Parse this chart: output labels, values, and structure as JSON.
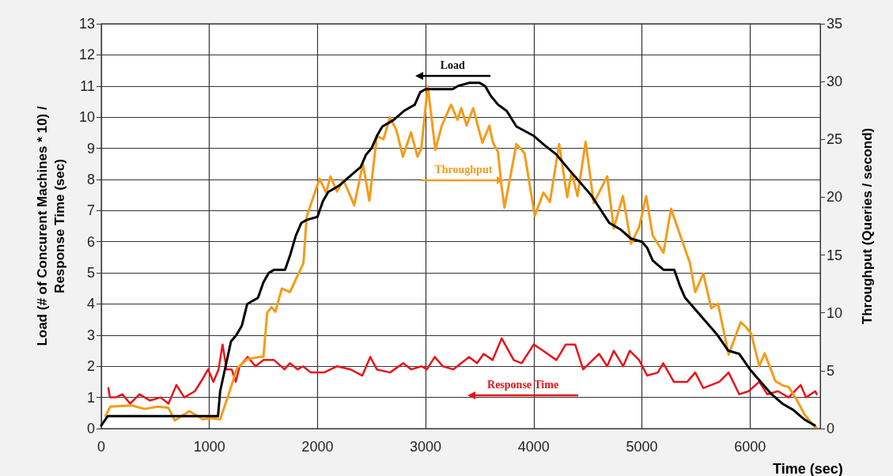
{
  "chart_data": {
    "type": "line",
    "xlabel": "Time (sec)",
    "ylabel": "Load (# of Concurent Machines * 10) /\nResponse Time (sec)",
    "y2label": "Throughput (Queries / second)",
    "xlim": [
      0,
      6650
    ],
    "xticks": [
      0,
      1000,
      2000,
      3000,
      4000,
      5000,
      6000
    ],
    "ylim": [
      0,
      13
    ],
    "yticks": [
      0,
      1,
      2,
      3,
      4,
      5,
      6,
      7,
      8,
      9,
      10,
      11,
      12,
      13
    ],
    "y2lim": [
      0,
      35
    ],
    "y2ticks": [
      0,
      5,
      10,
      15,
      20,
      25,
      30,
      35
    ],
    "grid": true,
    "marker": "none",
    "line_style": "solid",
    "series": [
      {
        "name": "Load",
        "color": "#000000",
        "axis": "y",
        "x": [
          0,
          60,
          1080,
          1100,
          1150,
          1200,
          1250,
          1300,
          1350,
          1400,
          1450,
          1500,
          1550,
          1600,
          1700,
          1750,
          1800,
          1850,
          1900,
          2000,
          2050,
          2100,
          2200,
          2300,
          2400,
          2450,
          2500,
          2550,
          2600,
          2700,
          2800,
          2900,
          2950,
          3000,
          3100,
          3250,
          3300,
          3400,
          3500,
          3550,
          3600,
          3670,
          3750,
          3840,
          4000,
          4100,
          4210,
          4330,
          4530,
          4700,
          4800,
          4900,
          5000,
          5050,
          5100,
          5200,
          5300,
          5350,
          5400,
          5500,
          5600,
          5700,
          5800,
          5900,
          6000,
          6100,
          6200,
          6300,
          6400,
          6500,
          6600
        ],
        "values": [
          0.1,
          0.4,
          0.4,
          1.2,
          2.0,
          2.8,
          3.0,
          3.3,
          4.0,
          4.1,
          4.2,
          4.7,
          5.0,
          5.1,
          5.1,
          5.6,
          6.2,
          6.6,
          6.7,
          6.8,
          7.3,
          7.6,
          7.8,
          8.1,
          8.4,
          8.8,
          9.0,
          9.4,
          9.7,
          9.9,
          10.2,
          10.4,
          10.8,
          10.9,
          10.9,
          10.9,
          11.0,
          11.1,
          11.1,
          11.0,
          10.7,
          10.4,
          10.2,
          9.7,
          9.4,
          9.1,
          8.8,
          8.3,
          7.5,
          6.6,
          6.4,
          6.1,
          6.0,
          5.8,
          5.4,
          5.1,
          5.1,
          4.6,
          4.2,
          3.8,
          3.4,
          3.0,
          2.5,
          2.4,
          1.9,
          1.5,
          1.1,
          0.8,
          0.6,
          0.3,
          0.1
        ]
      },
      {
        "name": "Throughput",
        "color": "#f39c1a",
        "axis": "y2",
        "x": [
          40,
          85,
          280,
          400,
          525,
          620,
          680,
          815,
          940,
          1010,
          1100,
          1180,
          1255,
          1350,
          1475,
          1500,
          1535,
          1575,
          1610,
          1670,
          1745,
          1795,
          1870,
          1900,
          1950,
          2020,
          2080,
          2120,
          2180,
          2240,
          2340,
          2420,
          2480,
          2550,
          2610,
          2670,
          2730,
          2790,
          2865,
          2925,
          2960,
          3020,
          3090,
          3150,
          3235,
          3295,
          3330,
          3380,
          3440,
          3525,
          3590,
          3620,
          3670,
          3700,
          3730,
          3840,
          3915,
          4010,
          4090,
          4150,
          4235,
          4310,
          4350,
          4405,
          4480,
          4555,
          4680,
          4740,
          4825,
          4900,
          4975,
          5040,
          5100,
          5200,
          5270,
          5370,
          5445,
          5494,
          5568,
          5642,
          5704,
          5803,
          5914,
          5960,
          6012,
          6086,
          6136,
          6235,
          6309,
          6358,
          6432,
          6506,
          6593,
          6617
        ],
        "values": [
          1.1,
          1.9,
          2.0,
          1.7,
          1.9,
          1.8,
          0.7,
          1.5,
          0.8,
          0.9,
          0.8,
          3.0,
          5.2,
          6.0,
          6.2,
          6.2,
          10.0,
          10.5,
          10.1,
          12.1,
          11.8,
          12.8,
          14.3,
          18.3,
          19.7,
          21.6,
          20.4,
          21.8,
          20.5,
          21.5,
          19.3,
          22.9,
          19.7,
          25.3,
          25.0,
          26.9,
          25.8,
          23.5,
          25.6,
          23.5,
          24.2,
          29.6,
          24.1,
          26.2,
          28.0,
          26.7,
          27.7,
          26.2,
          27.7,
          24.7,
          26.2,
          24.8,
          23.9,
          21.1,
          19.1,
          24.6,
          23.8,
          18.4,
          20.4,
          19.6,
          24.6,
          20.0,
          22.2,
          20.1,
          24.8,
          19.5,
          21.8,
          17.3,
          20.1,
          16.0,
          17.4,
          20.1,
          16.7,
          15.2,
          19.0,
          16.3,
          14.3,
          11.8,
          13.4,
          10.4,
          10.8,
          6.4,
          9.2,
          8.8,
          8.2,
          5.4,
          6.5,
          4.1,
          3.7,
          3.6,
          2.5,
          1.2,
          0.2,
          0.1
        ]
      },
      {
        "name": "Response Time",
        "color": "#e8141a",
        "axis": "y",
        "x": [
          66,
          80,
          134,
          195,
          268,
          354,
          451,
          549,
          622,
          695,
          768,
          866,
          939,
          988,
          1037,
          1085,
          1122,
          1159,
          1207,
          1244,
          1280,
          1354,
          1427,
          1500,
          1598,
          1695,
          1744,
          1817,
          1866,
          1939,
          2061,
          2183,
          2305,
          2415,
          2488,
          2549,
          2671,
          2793,
          2866,
          2963,
          3012,
          3085,
          3159,
          3256,
          3402,
          3476,
          3537,
          3620,
          3704,
          3815,
          3889,
          4000,
          4086,
          4210,
          4296,
          4383,
          4457,
          4605,
          4679,
          4741,
          4827,
          4889,
          4975,
          5049,
          5148,
          5198,
          5296,
          5420,
          5494,
          5568,
          5716,
          5803,
          5901,
          5988,
          6086,
          6160,
          6259,
          6358,
          6469,
          6518,
          6605,
          6617
        ],
        "values": [
          1.3,
          1.0,
          1.0,
          1.1,
          0.8,
          1.1,
          0.9,
          1.0,
          0.8,
          1.4,
          1.0,
          1.2,
          1.6,
          1.9,
          1.5,
          1.9,
          2.7,
          1.9,
          1.9,
          1.5,
          2.0,
          2.3,
          2.0,
          2.2,
          2.2,
          1.9,
          2.1,
          1.9,
          2.0,
          1.8,
          1.8,
          2.0,
          1.9,
          1.7,
          2.3,
          1.9,
          1.8,
          2.1,
          1.9,
          2.0,
          1.9,
          2.3,
          2.0,
          1.9,
          2.3,
          2.1,
          2.4,
          2.2,
          2.9,
          2.2,
          2.1,
          2.7,
          2.5,
          2.2,
          2.7,
          2.7,
          1.9,
          2.4,
          2.0,
          2.5,
          2.0,
          2.5,
          2.2,
          1.7,
          1.8,
          2.1,
          1.5,
          1.5,
          1.8,
          1.3,
          1.5,
          1.8,
          1.1,
          1.2,
          1.5,
          1.1,
          1.2,
          1.0,
          1.4,
          1.0,
          1.2,
          1.1
        ]
      }
    ]
  }
}
